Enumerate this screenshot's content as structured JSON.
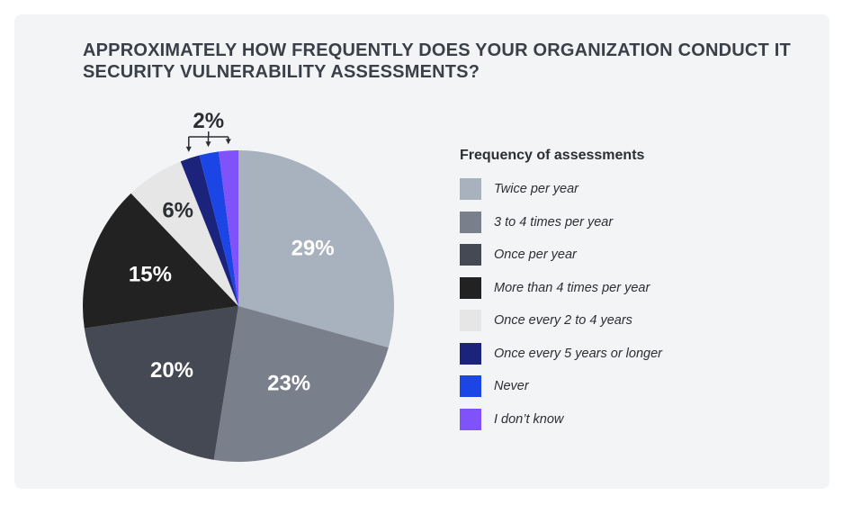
{
  "title": "APPROXIMATELY HOW FREQUENTLY DOES YOUR ORGANIZATION CONDUCT IT SECURITY VULNERABILITY ASSESSMENTS?",
  "chart_data": {
    "type": "pie",
    "title": "APPROXIMATELY HOW FREQUENTLY DOES YOUR ORGANIZATION CONDUCT IT SECURITY VULNERABILITY ASSESSMENTS?",
    "legend_title": "Frequency of assessments",
    "legend_position": "right",
    "slices": [
      {
        "label": "Twice per year",
        "value": 29,
        "display": "29%",
        "color": "#a8b1be",
        "text_color": "#ffffff"
      },
      {
        "label": "3 to 4 times per year",
        "value": 23,
        "display": "23%",
        "color": "#7a7f8c",
        "text_color": "#ffffff"
      },
      {
        "label": "Once per year",
        "value": 20,
        "display": "20%",
        "color": "#444953",
        "text_color": "#ffffff"
      },
      {
        "label": "More than 4 times per year",
        "value": 15,
        "display": "15%",
        "color": "#222222",
        "text_color": "#ffffff"
      },
      {
        "label": "Once every 2 to 4 years",
        "value": 6,
        "display": "6%",
        "color": "#e6e6e6",
        "text_color": "#2b2e33"
      },
      {
        "label": "Once every 5 years or longer",
        "value": 2,
        "display": "",
        "color": "#1c237a",
        "text_color": "#ffffff"
      },
      {
        "label": "Never",
        "value": 2,
        "display": "",
        "color": "#1c45e6",
        "text_color": "#ffffff"
      },
      {
        "label": "I don’t know",
        "value": 2,
        "display": "",
        "color": "#8052f9",
        "text_color": "#ffffff"
      }
    ],
    "shared_callout": "2%"
  }
}
